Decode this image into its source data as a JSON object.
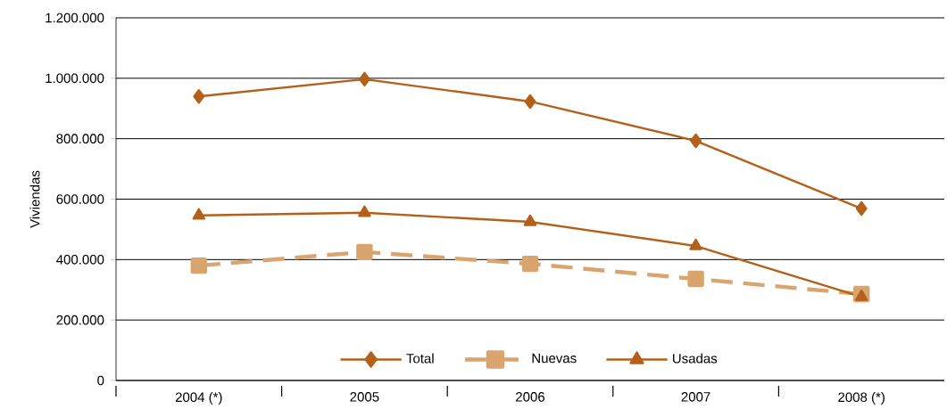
{
  "chart_data": {
    "type": "line",
    "ylabel": "Viviendas",
    "categories": [
      "2004 (*)",
      "2005",
      "2006",
      "2007",
      "2008 (*)"
    ],
    "series": [
      {
        "name": "Total",
        "color": "#b5601a",
        "values": [
          940000,
          997000,
          923000,
          793000,
          569000
        ],
        "marker": "diamond",
        "line_style": "solid"
      },
      {
        "name": "Nuevas",
        "color": "#d9a46e",
        "values": [
          380000,
          425000,
          386000,
          336000,
          286000
        ],
        "marker": "square",
        "line_style": "dashed"
      },
      {
        "name": "Usadas",
        "color": "#b5601a",
        "values": [
          546000,
          555000,
          525000,
          445000,
          277000
        ],
        "marker": "triangle",
        "line_style": "solid"
      }
    ],
    "ylim": [
      0,
      1200000
    ],
    "yticks": [
      {
        "value": 0,
        "label": "0"
      },
      {
        "value": 200000,
        "label": "200.000"
      },
      {
        "value": 400000,
        "label": "400.000"
      },
      {
        "value": 600000,
        "label": "600.000"
      },
      {
        "value": 800000,
        "label": "800.000"
      },
      {
        "value": 1000000,
        "label": "1.000.000"
      },
      {
        "value": 1200000,
        "label": "1.200.000"
      }
    ],
    "grid": "y",
    "legend": "bottom"
  }
}
